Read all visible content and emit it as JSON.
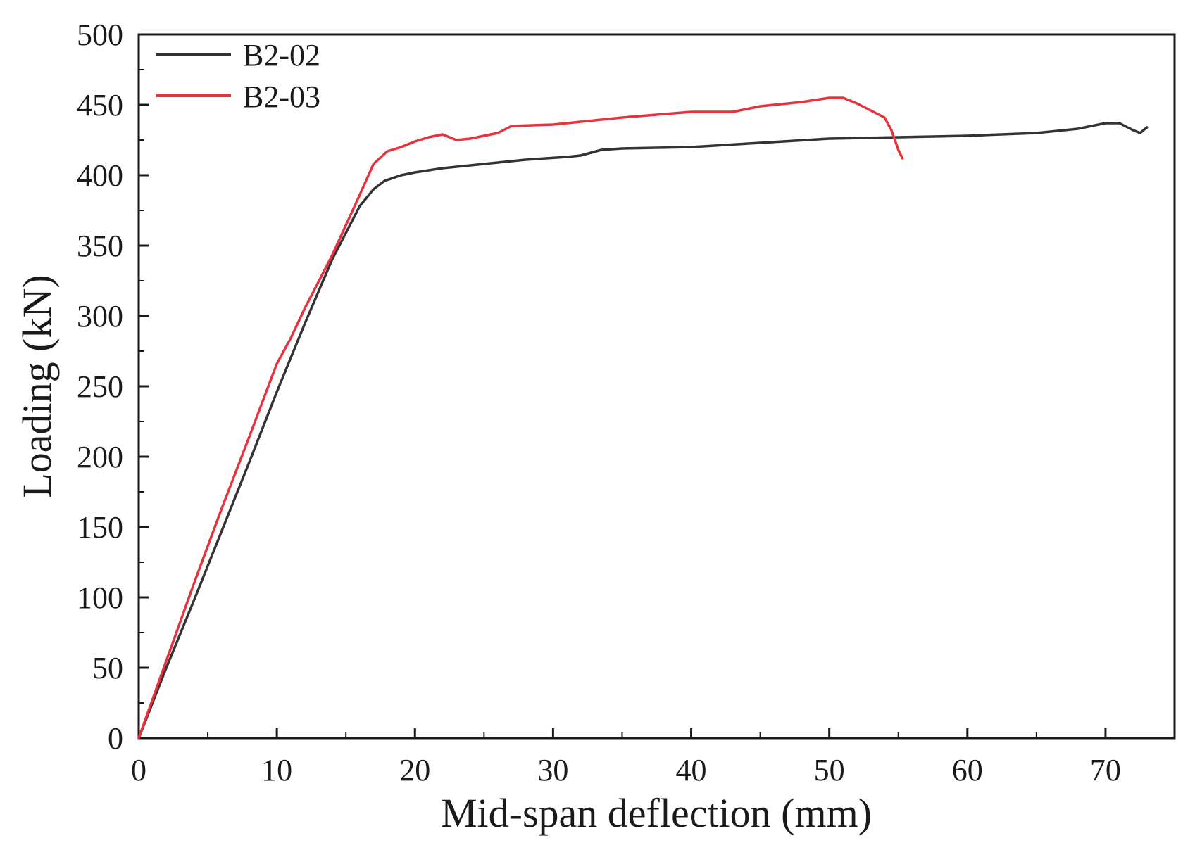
{
  "chart_data": {
    "type": "line",
    "title": "",
    "xlabel": "Mid-span deflection (mm)",
    "ylabel": "Loading (kN)",
    "xlim": [
      0,
      75
    ],
    "ylim": [
      0,
      500
    ],
    "xticks": [
      0,
      10,
      20,
      30,
      40,
      50,
      60,
      70
    ],
    "xtick_labels": [
      "0",
      "10",
      "20",
      "30",
      "40",
      "50",
      "60",
      "70"
    ],
    "yticks": [
      0,
      50,
      100,
      150,
      200,
      250,
      300,
      350,
      400,
      450,
      500
    ],
    "ytick_labels": [
      "0",
      "50",
      "100",
      "150",
      "200",
      "250",
      "300",
      "350",
      "400",
      "450",
      "500"
    ],
    "grid": false,
    "legend_position": "top-left",
    "series": [
      {
        "name": "B2-02",
        "color": "#333333",
        "x": [
          0,
          2,
          4,
          6,
          8,
          10,
          12,
          14,
          16,
          17,
          17.8,
          19,
          20,
          22,
          25,
          28,
          31,
          32,
          33.5,
          35,
          40,
          45,
          50,
          55,
          60,
          65,
          68,
          70,
          71,
          72,
          72.5,
          73
        ],
        "y": [
          0,
          50,
          98,
          147,
          196,
          246,
          294,
          340,
          378,
          390,
          396,
          400,
          402,
          405,
          408,
          411,
          413,
          414,
          418,
          419,
          420,
          423,
          426,
          427,
          428,
          430,
          433,
          437,
          437,
          432,
          430,
          434
        ]
      },
      {
        "name": "B2-03",
        "color": "#e8323c",
        "x": [
          0,
          2,
          4,
          6,
          8,
          10,
          11,
          12,
          14,
          16,
          17,
          18,
          19,
          20,
          21,
          22,
          23,
          24,
          25,
          26,
          27,
          30,
          35,
          40,
          43,
          45,
          48,
          50,
          51,
          52,
          53,
          54,
          54.5,
          55,
          55.3
        ],
        "y": [
          0,
          55,
          110,
          163,
          214,
          266,
          284,
          305,
          343,
          386,
          408,
          417,
          420,
          424,
          427,
          429,
          425,
          426,
          428,
          430,
          435,
          436,
          441,
          445,
          445,
          449,
          452,
          455,
          455,
          451,
          446,
          441,
          432,
          418,
          412
        ]
      }
    ]
  }
}
